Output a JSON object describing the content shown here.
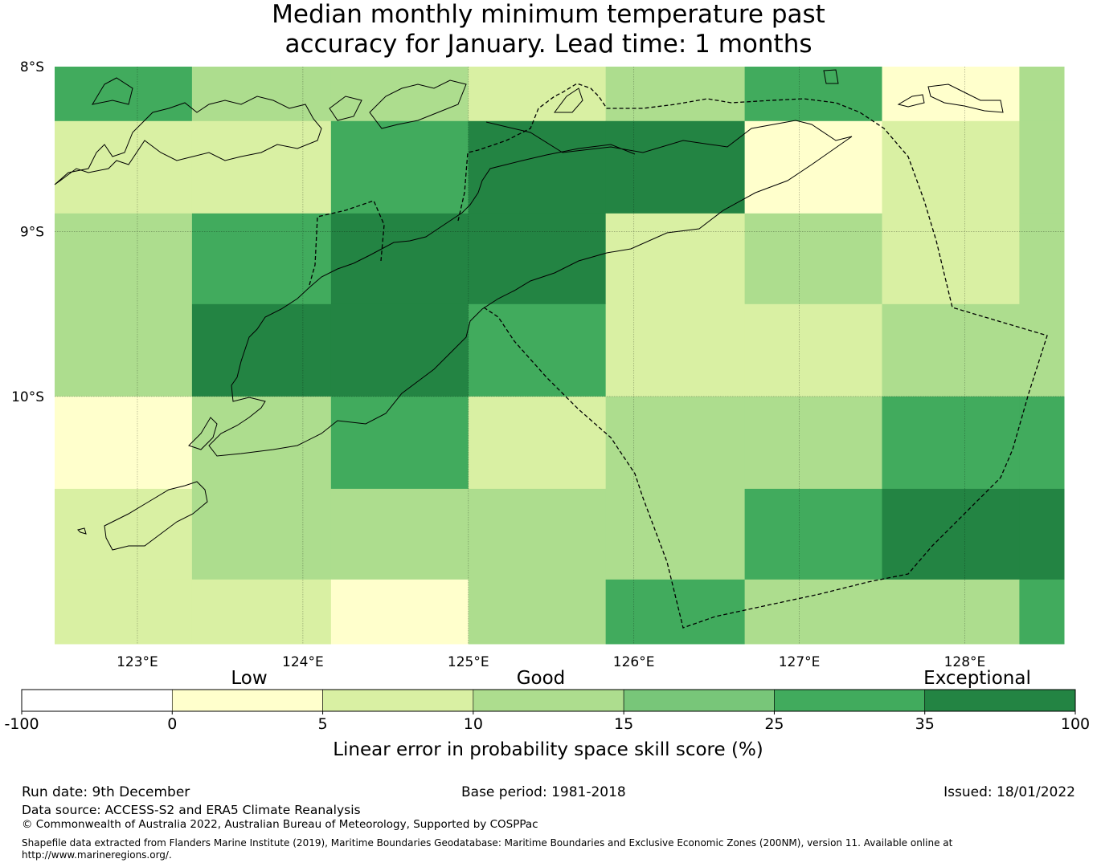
{
  "title": {
    "line1": "Median monthly minimum temperature past",
    "line2": "accuracy for January. Lead time: 1 months"
  },
  "map": {
    "lat_labels": [
      "8°S",
      "9°S",
      "10°S"
    ],
    "lon_labels": [
      "123°E",
      "124°E",
      "125°E",
      "126°E",
      "127°E",
      "128°E"
    ],
    "lon_range": [
      122.5,
      128.6
    ],
    "lat_range": [
      -8.0,
      -11.5
    ],
    "grid_lons": [
      123,
      124,
      125,
      126,
      127,
      128
    ],
    "grid_lats": [
      -9,
      -10
    ],
    "cell_lon_edges": [
      122.5,
      123.33,
      124.17,
      125.0,
      125.83,
      126.67,
      127.5,
      128.33,
      128.6
    ],
    "cell_lat_edges": [
      -8.0,
      -8.33,
      -8.89,
      -9.44,
      -10.0,
      -10.56,
      -11.11,
      -11.5
    ],
    "cell_classes": [
      [
        5,
        3,
        3,
        2,
        3,
        5,
        1,
        3
      ],
      [
        2,
        2,
        5,
        6,
        6,
        1,
        2,
        3
      ],
      [
        3,
        5,
        6,
        6,
        2,
        3,
        2,
        3
      ],
      [
        3,
        6,
        6,
        5,
        2,
        2,
        3,
        3
      ],
      [
        1,
        3,
        5,
        2,
        3,
        3,
        5,
        5
      ],
      [
        2,
        3,
        3,
        3,
        3,
        5,
        6,
        6
      ],
      [
        2,
        2,
        1,
        3,
        5,
        3,
        3,
        5
      ]
    ]
  },
  "colorbar": {
    "category_labels": [
      "Low",
      "Good",
      "Exceptional"
    ],
    "tick_labels": [
      "-100",
      "0",
      "5",
      "10",
      "15",
      "25",
      "35",
      "100"
    ],
    "colors": [
      "#ffffff",
      "#ffffcc",
      "#d9f0a3",
      "#addd8e",
      "#78c679",
      "#41ab5d",
      "#238443"
    ],
    "label": "Linear error in probability space skill score (%)"
  },
  "footer": {
    "run_date": "Run date: 9th December",
    "base_period": "Base period: 1981-2018",
    "issued": "Issued: 18/01/2022",
    "data_source": "Data source: ACCESS-S2 and ERA5 Climate Reanalysis",
    "copyright": "© Commonwealth of Australia 2022, Australian Bureau of Meteorology, Supported by COSPPac",
    "shapefile_line1": "Shapefile data extracted from Flanders Marine Institute (2019), Maritime Boundaries Geodatabase: Maritime Boundaries and Exclusive Economic Zones (200NM), version 11. Available online at",
    "shapefile_line2": "http://www.marineregions.org/."
  }
}
